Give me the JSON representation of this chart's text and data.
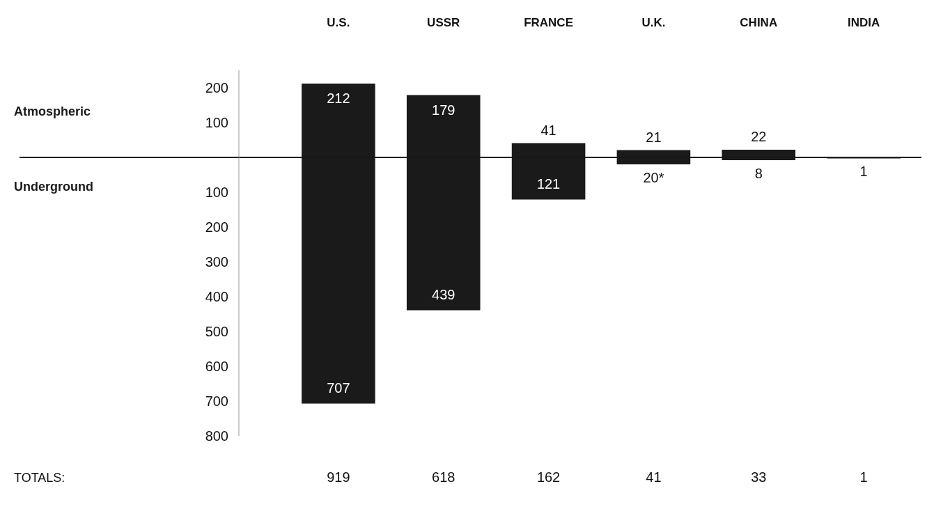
{
  "chart_data": [
    {
      "type": "bar",
      "categories": [
        "U.S.",
        "USSR",
        "FRANCE",
        "U.K.",
        "CHINA",
        "INDIA"
      ],
      "series": [
        {
          "name": "Atmospheric",
          "color": "#1a1a1a",
          "values": [
            212,
            179,
            41,
            21,
            22,
            null
          ],
          "value_labels": [
            "212",
            "179",
            "41",
            "21",
            "22",
            null
          ]
        }
      ],
      "ylim": [
        0,
        250
      ],
      "yticks": [
        100,
        200
      ]
    },
    {
      "type": "bar",
      "categories": [
        null,
        null,
        null,
        null,
        null,
        null
      ],
      "tick_labels": "y",
      "series": [
        {
          "name": "Underground",
          "color": "#1a1a1a",
          "values": [
            707,
            439,
            121,
            20,
            8,
            1
          ],
          "value_labels": [
            "707",
            "439",
            "121",
            "20*",
            "8",
            "1"
          ]
        }
      ],
      "ylim": [
        800,
        0
      ],
      "yticks": [
        100,
        200,
        300,
        400,
        500,
        600,
        700,
        800
      ],
      "annotations": [
        "TOTALS:",
        "919",
        "618",
        "162",
        "41",
        "33",
        "1"
      ]
    }
  ]
}
